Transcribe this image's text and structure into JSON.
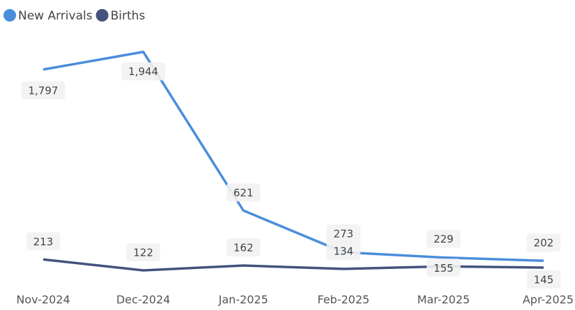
{
  "chart_data": {
    "type": "line",
    "categories": [
      "Nov-2024",
      "Dec-2024",
      "Jan-2025",
      "Feb-2025",
      "Mar-2025",
      "Apr-2025"
    ],
    "series": [
      {
        "name": "New Arrivals",
        "color": "#4a8ddb",
        "values": [
          1797,
          1944,
          621,
          273,
          229,
          202
        ],
        "value_labels": [
          "1,797",
          "1,944",
          "621",
          "273",
          "229",
          "202"
        ]
      },
      {
        "name": "Births",
        "color": "#44527d",
        "values": [
          213,
          122,
          162,
          134,
          155,
          145
        ],
        "value_labels": [
          "213",
          "122",
          "162",
          "134",
          "155",
          "145"
        ]
      }
    ],
    "ylim": [
      0,
      2000
    ],
    "legend": "top-left"
  }
}
